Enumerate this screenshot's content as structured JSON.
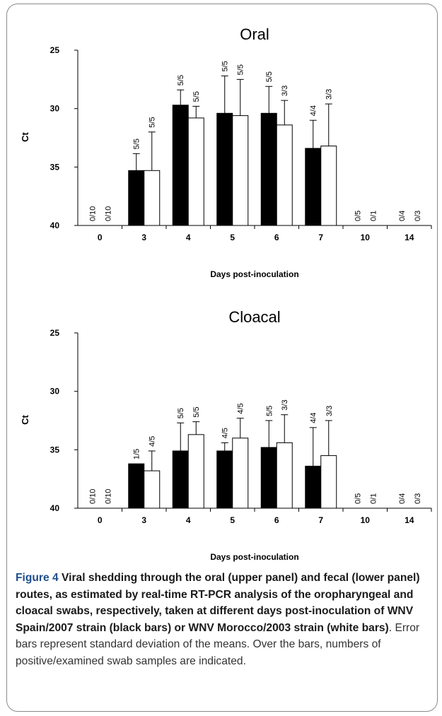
{
  "figure": {
    "label": "Figure 4",
    "caption_bold": "Viral shedding through the oral (upper panel) and fecal (lower panel) routes, as estimated by real-time RT-PCR analysis of the oropharyngeal and cloacal swabs, respectively, taken at different days post-inoculation of WNV Spain/2007 strain (black bars) or WNV Morocco/2003 strain (white bars)",
    "caption_period": ".",
    "caption_note": "Error bars represent standard deviation of the means. Over the bars, numbers of positive/examined swab samples are indicated."
  },
  "colors": {
    "spain": "#000000",
    "morocco": "#ffffff",
    "frame": "#8a8a8a",
    "label_blue": "#1f4e8c"
  },
  "chart_data": [
    {
      "type": "bar",
      "title": "Oral",
      "xlabel": "Days post-inoculation",
      "ylabel": "Ct",
      "ylim": [
        40,
        25
      ],
      "y_inverted": true,
      "yticks": [
        "25",
        "30",
        "35",
        "40"
      ],
      "categories": [
        "0",
        "3",
        "4",
        "5",
        "6",
        "7",
        "10",
        "14"
      ],
      "series": [
        {
          "color": "#000000",
          "values": [
            40,
            35.3,
            29.7,
            30.4,
            30.4,
            33.4,
            40,
            40
          ],
          "errors": [
            0,
            1.45,
            1.3,
            3.2,
            2.3,
            2.4,
            0,
            0
          ],
          "labels": [
            "0/10",
            "5/5",
            "5/5",
            "5/5",
            "5/5",
            "4/4",
            "0/5",
            "0/4"
          ]
        },
        {
          "color": "#ffffff",
          "values": [
            40,
            35.3,
            30.8,
            30.6,
            31.4,
            33.2,
            40,
            40
          ],
          "errors": [
            0,
            3.3,
            1.0,
            3.1,
            2.1,
            3.6,
            0,
            0
          ],
          "labels": [
            "0/10",
            "5/5",
            "5/5",
            "5/5",
            "3/3",
            "3/3",
            "0/1",
            "0/3"
          ]
        }
      ]
    },
    {
      "type": "bar",
      "title": "Cloacal",
      "xlabel": "Days post-inoculation",
      "ylabel": "Ct",
      "ylim": [
        40,
        25
      ],
      "y_inverted": true,
      "yticks": [
        "25",
        "30",
        "35",
        "40"
      ],
      "categories": [
        "0",
        "3",
        "4",
        "5",
        "6",
        "7",
        "10",
        "14"
      ],
      "series": [
        {
          "color": "#000000",
          "values": [
            40,
            36.2,
            35.1,
            35.1,
            34.8,
            36.4,
            40,
            40
          ],
          "errors": [
            0,
            0,
            2.4,
            0.7,
            2.3,
            3.3,
            0,
            0
          ],
          "labels": [
            "0/10",
            "1/5",
            "5/5",
            "4/5",
            "5/5",
            "4/4",
            "0/5",
            "0/4"
          ]
        },
        {
          "color": "#ffffff",
          "values": [
            40,
            36.8,
            33.7,
            34.0,
            34.4,
            35.5,
            40,
            40
          ],
          "errors": [
            0,
            1.7,
            1.1,
            1.7,
            2.4,
            3.0,
            0,
            0
          ],
          "labels": [
            "0/10",
            "4/5",
            "5/5",
            "4/5",
            "3/3",
            "3/3",
            "0/1",
            "0/3"
          ]
        }
      ]
    }
  ]
}
